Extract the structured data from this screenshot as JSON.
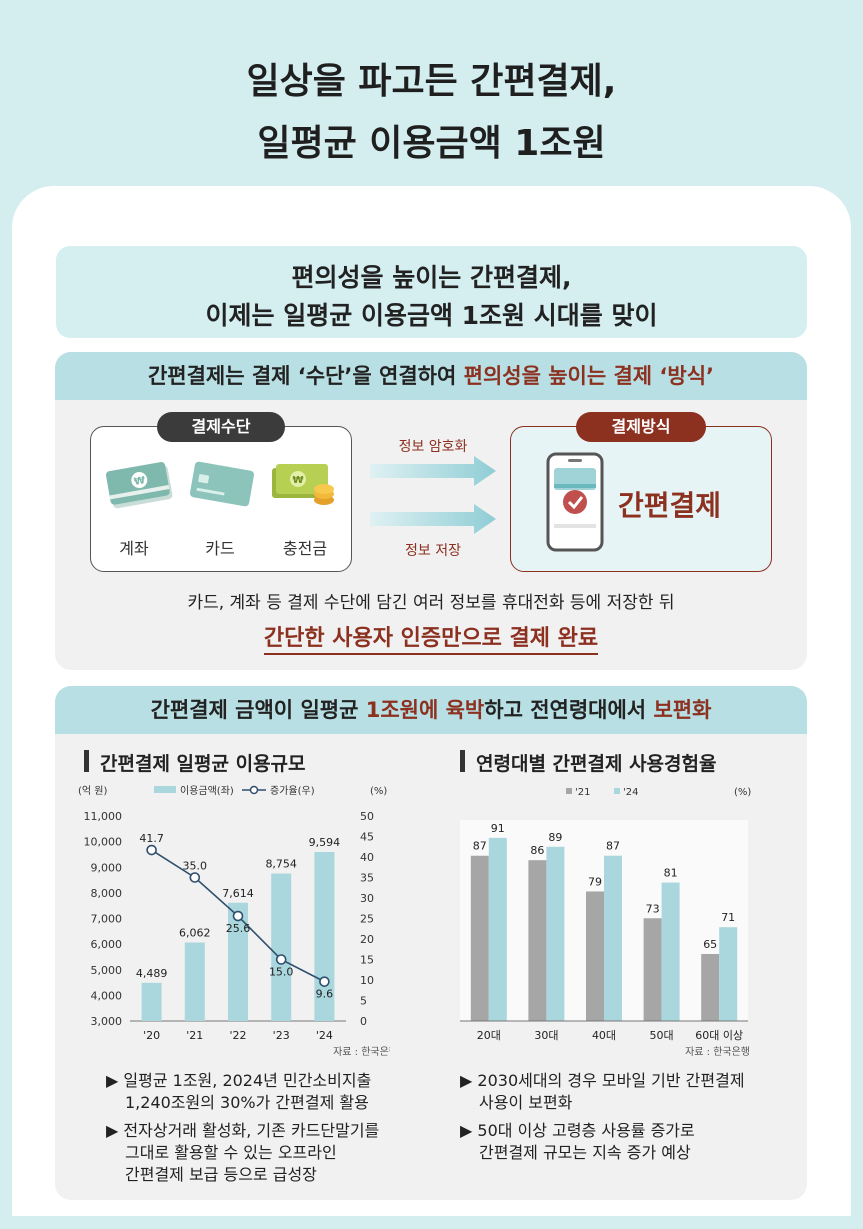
{
  "hero": {
    "title_line1": "일상을 파고든 간편결제,",
    "title_line2": "일평균 이용금액 1조원"
  },
  "banner": {
    "line1": "편의성을 높이는 간편결제,",
    "line2": "이제는 일평균 이용금액 1조원 시대를 맞이"
  },
  "section1": {
    "head_a": "간편결제는 결제 ‘수단’을 연결하여 ",
    "head_b": "편의성을 높이는 결제 ‘방식’",
    "means_pill": "결제수단",
    "method_pill": "결제방식",
    "means": [
      {
        "label": "계좌",
        "icon": "bankbook-icon"
      },
      {
        "label": "카드",
        "icon": "card-icon"
      },
      {
        "label": "충전금",
        "icon": "cash-icon"
      }
    ],
    "arrow_top_label": "정보 암호화",
    "arrow_bottom_label": "정보 저장",
    "method_label": "간편결제",
    "desc_line1": "카드, 계좌 등 결제 수단에 담긴 여러 정보를 휴대전화 등에 저장한 뒤",
    "desc_line2": "간단한 사용자 인증만으로 결제 완료"
  },
  "section2": {
    "head_a": "간편결제 금액이 일평균 ",
    "head_b": "1조원에 육박",
    "head_c": "하고 전연령대에서 ",
    "head_d": "보편화",
    "left_title": "간편결제 일평균 이용규모",
    "right_title": "연령대별 간편결제 사용경험율",
    "left_bullets": [
      "일평균 1조원, 2024년 민간소비지출",
      "1,240조원의 30%가 간편결제 활용",
      "전자상거래 활성화, 기존 카드단말기를",
      "그대로 활용할 수 있는 오프라인",
      "간편결제 보급 등으로 급성장"
    ],
    "right_bullets": [
      "2030세대의 경우 모바일 기반 간편결제",
      "사용이 보편화",
      "50대 이상 고령층 사용률 증가로",
      "간편결제 규모는 지속 증가 예상"
    ],
    "bullet_marker": "▶"
  },
  "colors": {
    "teal": "#a9d7dd",
    "gray_bar": "#a6a6a6",
    "brown_red": "#8c3020",
    "line": "#2f4f6e"
  },
  "chart_data": [
    {
      "type": "bar",
      "title": "간편결제 일평균 이용규모",
      "categories": [
        "'20",
        "'21",
        "'22",
        "'23",
        "'24"
      ],
      "series": [
        {
          "name": "이용금액(좌)",
          "type": "bar",
          "axis": "left",
          "values": [
            4489,
            6062,
            7614,
            8754,
            9594
          ],
          "labels": [
            "4,489",
            "6,062",
            "7,614",
            "8,754",
            "9,594"
          ]
        },
        {
          "name": "증가율(우)",
          "type": "line",
          "axis": "right",
          "values": [
            41.7,
            35.0,
            25.6,
            15.0,
            9.6
          ],
          "labels": [
            "41.7",
            "35.0",
            "25.6",
            "15.0",
            "9.6"
          ]
        }
      ],
      "yleft_label": "(억 원)",
      "yright_label": "(%)",
      "ylim_left": [
        3000,
        11000
      ],
      "ylim_right": [
        0,
        50
      ],
      "yleft_ticks": [
        "3,000",
        "4,000",
        "5,000",
        "6,000",
        "7,000",
        "8,000",
        "9,000",
        "10,000",
        "11,000"
      ],
      "yright_ticks": [
        "0",
        "5",
        "10",
        "15",
        "20",
        "25",
        "30",
        "35",
        "40",
        "45",
        "50"
      ],
      "source": "자료 : 한국은행",
      "legend_position": "top"
    },
    {
      "type": "bar",
      "title": "연령대별 간편결제 사용경험율",
      "categories": [
        "20대",
        "30대",
        "40대",
        "50대",
        "60대 이상"
      ],
      "series": [
        {
          "name": "'21",
          "values": [
            87,
            86,
            79,
            73,
            65
          ]
        },
        {
          "name": "'24",
          "values": [
            91,
            89,
            87,
            81,
            71
          ]
        }
      ],
      "yunit": "(%)",
      "ylim": [
        50,
        95
      ],
      "source": "자료 : 한국은행",
      "legend_position": "top"
    }
  ]
}
